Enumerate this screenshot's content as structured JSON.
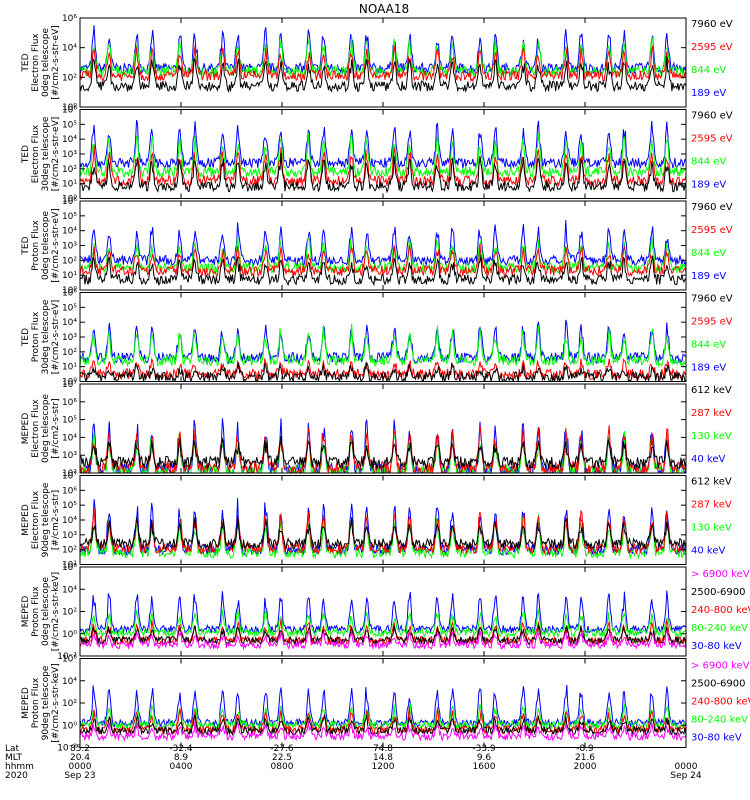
{
  "title": "NOAA18",
  "colors": {
    "black": "#000000",
    "blue": "#0000ff",
    "red": "#ff0000",
    "green": "#00ff00",
    "magenta": "#ff00ff"
  },
  "chart_data": [
    {
      "type": "line",
      "ylabel": [
        "TED",
        "Electron Flux",
        "0deg telescope",
        "[#/cm2-s-str-eV]"
      ],
      "y_scale": "log",
      "ylim": [
        1,
        1000000
      ],
      "ytick_exp": [
        0,
        2,
        4,
        6
      ],
      "ytick_labels": [
        "10⁰",
        "10²",
        "10⁴",
        "10⁶"
      ],
      "series": [
        {
          "name": "7960 eV",
          "color": "black",
          "level": 1.4,
          "burst": 1.5
        },
        {
          "name": "2595 eV",
          "color": "red",
          "level": 2.1,
          "burst": 1.6
        },
        {
          "name": "844 eV",
          "color": "green",
          "level": 2.4,
          "burst": 1.8
        },
        {
          "name": "189 eV",
          "color": "blue",
          "level": 2.6,
          "burst": 2.2
        }
      ]
    },
    {
      "type": "line",
      "ylabel": [
        "TED",
        "Electron Flux",
        "30deg telescope",
        "[#/cm2-s-str-eV]"
      ],
      "y_scale": "log",
      "ylim": [
        1,
        1000000
      ],
      "ytick_exp": [
        0,
        1,
        2,
        3,
        4,
        5,
        6
      ],
      "ytick_labels": [
        "10⁰",
        "10¹",
        "10²",
        "10³",
        "10⁴",
        "10⁵",
        "10⁶"
      ],
      "series": [
        {
          "name": "7960 eV",
          "color": "black",
          "level": 0.8,
          "burst": 1.6
        },
        {
          "name": "2595 eV",
          "color": "red",
          "level": 1.2,
          "burst": 1.7
        },
        {
          "name": "844 eV",
          "color": "green",
          "level": 1.8,
          "burst": 2.0
        },
        {
          "name": "189 eV",
          "color": "blue",
          "level": 2.4,
          "burst": 2.2
        }
      ]
    },
    {
      "type": "line",
      "ylabel": [
        "TED",
        "Proton Flux",
        "0deg telescope",
        "[#/cm2-s-str-eV]"
      ],
      "y_scale": "log",
      "ylim": [
        1,
        1000000
      ],
      "ytick_exp": [
        0,
        1,
        2,
        3,
        4,
        5,
        6
      ],
      "ytick_labels": [
        "10⁰",
        "10¹",
        "10²",
        "10³",
        "10⁴",
        "10⁵",
        "10⁶"
      ],
      "series": [
        {
          "name": "7960 eV",
          "color": "black",
          "level": 0.7,
          "burst": 1.2
        },
        {
          "name": "2595 eV",
          "color": "red",
          "level": 1.3,
          "burst": 1.3
        },
        {
          "name": "844 eV",
          "color": "green",
          "level": 1.5,
          "burst": 1.6
        },
        {
          "name": "189 eV",
          "color": "blue",
          "level": 2.0,
          "burst": 2.0
        }
      ]
    },
    {
      "type": "line",
      "ylabel": [
        "TED",
        "Proton Flux",
        "30deg telescope",
        "[#/cm2-s-str-eV]"
      ],
      "y_scale": "log",
      "ylim": [
        1,
        1000000
      ],
      "ytick_exp": [
        0,
        1,
        2,
        3,
        4,
        5,
        6
      ],
      "ytick_labels": [
        "10⁰",
        "10¹",
        "10²",
        "10³",
        "10⁴",
        "10⁵",
        "10⁶"
      ],
      "series": [
        {
          "name": "7960 eV",
          "color": "black",
          "level": 0.3,
          "burst": 0.6
        },
        {
          "name": "2595 eV",
          "color": "red",
          "level": 0.5,
          "burst": 0.7
        },
        {
          "name": "844 eV",
          "color": "green",
          "level": 1.4,
          "burst": 1.8
        },
        {
          "name": "189 eV",
          "color": "blue",
          "level": 1.6,
          "burst": 1.9
        }
      ]
    },
    {
      "type": "line",
      "ylabel": [
        "MEPED",
        "Electron Flux",
        "0deg telescope",
        "[#/cm2-s-str]"
      ],
      "y_scale": "log",
      "ylim": [
        100,
        10000000
      ],
      "ytick_exp": [
        2,
        3,
        4,
        5,
        6,
        7
      ],
      "ytick_labels": [
        "10²",
        "10³",
        "10⁴",
        "10⁵",
        "10⁶",
        "10⁷"
      ],
      "series": [
        {
          "name": "612 keV",
          "color": "black",
          "level": 2.6,
          "burst": 1.0
        },
        {
          "name": "287 keV",
          "color": "red",
          "level": 2.3,
          "burst": 1.8
        },
        {
          "name": "130 keV",
          "color": "green",
          "level": 2.1,
          "burst": 1.7
        },
        {
          "name": "40 keV",
          "color": "blue",
          "level": 2.2,
          "burst": 2.2
        }
      ]
    },
    {
      "type": "line",
      "ylabel": [
        "MEPED",
        "Electron Flux",
        "90deg telescope",
        "[#/cm2-s-str]"
      ],
      "y_scale": "log",
      "ylim": [
        10,
        10000000
      ],
      "ytick_exp": [
        1,
        2,
        3,
        4,
        5,
        6,
        7
      ],
      "ytick_labels": [
        "10¹",
        "10²",
        "10³",
        "10⁴",
        "10⁵",
        "10⁶",
        "10⁷"
      ],
      "series": [
        {
          "name": "612 keV",
          "color": "black",
          "level": 2.4,
          "burst": 1.3
        },
        {
          "name": "287 keV",
          "color": "red",
          "level": 2.1,
          "burst": 2.0
        },
        {
          "name": "130 keV",
          "color": "green",
          "level": 1.8,
          "burst": 1.9
        },
        {
          "name": "40 keV",
          "color": "blue",
          "level": 2.0,
          "burst": 2.6
        }
      ]
    },
    {
      "type": "line",
      "ylabel": [
        "MEPED",
        "Proton Flux",
        "0deg telescope",
        "[#/cm2-s-str-keV]"
      ],
      "y_scale": "log",
      "ylim": [
        0.01,
        1000000
      ],
      "ytick_exp": [
        -2,
        0,
        2,
        4,
        6
      ],
      "ytick_labels": [
        "10⁻²",
        "10⁰",
        "10²",
        "10⁴",
        "10⁶"
      ],
      "series": [
        {
          "name": "> 6900 keV",
          "color": "magenta",
          "level": -1.0,
          "burst": 0.9
        },
        {
          "name": "2500-6900",
          "color": "black",
          "level": -0.6,
          "burst": 1.0
        },
        {
          "name": "240-800 keV",
          "color": "red",
          "level": -0.6,
          "burst": 1.3
        },
        {
          "name": "80-240 keV",
          "color": "green",
          "level": 0.1,
          "burst": 1.6
        },
        {
          "name": "30-80 keV",
          "color": "blue",
          "level": 0.4,
          "burst": 2.8
        }
      ]
    },
    {
      "type": "line",
      "ylabel": [
        "MEPED",
        "Proton Flux",
        "90deg telescope",
        "[#/cm2-s-str-keV]"
      ],
      "y_scale": "log",
      "ylim": [
        0.01,
        1000000
      ],
      "ytick_exp": [
        -2,
        0,
        2,
        4,
        6
      ],
      "ytick_labels": [
        "10⁻²",
        "10⁰",
        "10²",
        "10⁴",
        "10⁶"
      ],
      "series": [
        {
          "name": "> 6900 keV",
          "color": "magenta",
          "level": -1.0,
          "burst": 0.9
        },
        {
          "name": "2500-6900",
          "color": "black",
          "level": -0.5,
          "burst": 1.0
        },
        {
          "name": "240-800 keV",
          "color": "red",
          "level": -0.4,
          "burst": 1.4
        },
        {
          "name": "80-240 keV",
          "color": "green",
          "level": 0.0,
          "burst": 1.5
        },
        {
          "name": "30-80 keV",
          "color": "blue",
          "level": 0.2,
          "burst": 2.8
        }
      ]
    }
  ],
  "x_axis": {
    "row_labels": [
      "Lat",
      "MLT",
      "hhmm",
      "2020"
    ],
    "ticks": [
      {
        "hour": 0,
        "lat": "85.2",
        "mlt": "20.4",
        "hhmm": "0000",
        "date": "Sep 23"
      },
      {
        "hour": 4,
        "lat": "-32.4",
        "mlt": "8.9",
        "hhmm": "0400",
        "date": ""
      },
      {
        "hour": 8,
        "lat": "-27.6",
        "mlt": "22.5",
        "hhmm": "0800",
        "date": ""
      },
      {
        "hour": 12,
        "lat": "74.8",
        "mlt": "14.8",
        "hhmm": "1200",
        "date": ""
      },
      {
        "hour": 16,
        "lat": "-33.9",
        "mlt": "9.6",
        "hhmm": "1600",
        "date": ""
      },
      {
        "hour": 20,
        "lat": "-8.9",
        "mlt": "21.6",
        "hhmm": "2000",
        "date": ""
      },
      {
        "hour": 24,
        "lat": "",
        "mlt": "",
        "hhmm": "0000",
        "date": "Sep 24"
      }
    ],
    "xlim": [
      0,
      24
    ]
  },
  "orbit_peaks_hours": [
    0.55,
    1.15,
    2.25,
    2.85,
    3.95,
    4.55,
    5.65,
    6.25,
    7.35,
    7.95,
    9.05,
    9.65,
    10.75,
    11.35,
    12.45,
    13.05,
    14.15,
    14.75,
    15.85,
    16.45,
    17.55,
    18.15,
    19.25,
    19.85,
    20.95,
    21.55,
    22.65,
    23.25
  ]
}
